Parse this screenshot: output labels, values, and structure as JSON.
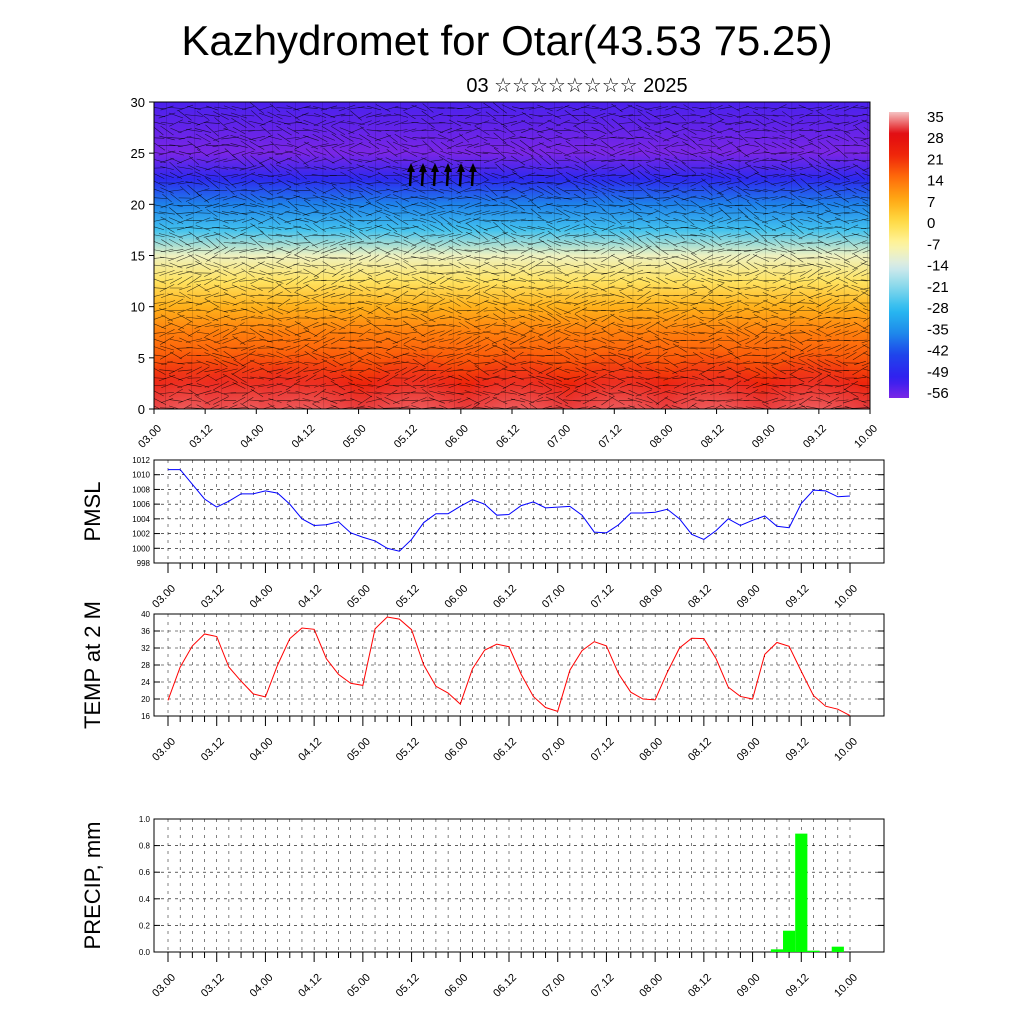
{
  "title": "Kazhydromet for Otar(43.53 75.25)",
  "subtitle": "03 ☆☆☆☆☆☆☆☆ 2025",
  "time_ticks": [
    "03.00",
    "03.12",
    "04.00",
    "04.12",
    "05.00",
    "05.12",
    "06.00",
    "06.12",
    "07.00",
    "07.12",
    "08.00",
    "08.12",
    "09.00",
    "09.12",
    "10.00"
  ],
  "colors": {
    "pmsl_line": "#0000ff",
    "temp_line": "#ff0000",
    "precip_bar": "#00ff00"
  },
  "chart_data": [
    {
      "type": "heatmap",
      "panel": "cross-section",
      "description_note": "",
      "ylim": [
        0,
        30
      ],
      "yticks": [
        0,
        5,
        10,
        15,
        20,
        25,
        30
      ],
      "colorbar_labels": [
        "35",
        "28",
        "21",
        "14",
        "7",
        "0",
        "-7",
        "-14",
        "-21",
        "-28",
        "-35",
        "-42",
        "-49",
        "-56"
      ],
      "levels": [
        0,
        2.5,
        5,
        7.5,
        10,
        12.5,
        15,
        17.5,
        20,
        22.5,
        25,
        27.5,
        30
      ],
      "level_temps": [
        30,
        22,
        16,
        12,
        6,
        -2,
        -10,
        -26,
        -36,
        -48,
        -56,
        -54,
        -52
      ]
    },
    {
      "type": "line",
      "ylabel": "PMSL",
      "ylim": [
        998,
        1012
      ],
      "yticks": [
        998,
        1000,
        1002,
        1004,
        1006,
        1008,
        1010,
        1012
      ],
      "x_start": "03.00",
      "x_step_hours": 3,
      "series": [
        {
          "values": [
            1010.7,
            1010.7,
            1008.7,
            1006.7,
            1005.6,
            1006.4,
            1007.4,
            1007.4,
            1007.8,
            1007.5,
            1006.0,
            1004.0,
            1003.1,
            1003.2,
            1003.6,
            1002.1,
            1001.5,
            1001.0,
            1000.0,
            999.6,
            1001.2,
            1003.5,
            1004.7,
            1004.7,
            1005.7,
            1006.6,
            1006.0,
            1004.5,
            1004.6,
            1005.8,
            1006.3,
            1005.5,
            1005.6,
            1005.7,
            1004.5,
            1002.2,
            1002.1,
            1003.2,
            1004.8,
            1004.8,
            1004.9,
            1005.3,
            1004.0,
            1001.9,
            1001.2,
            1002.4,
            1004.0,
            1003.1,
            1003.8,
            1004.4,
            1003.0,
            1002.8,
            1006.1,
            1007.9,
            1007.8,
            1007.0,
            1007.1
          ]
        }
      ]
    },
    {
      "type": "line",
      "ylabel": "TEMP at 2 M",
      "ylim": [
        16,
        40
      ],
      "yticks": [
        16,
        20,
        24,
        28,
        32,
        36,
        40
      ],
      "x_start": "03.00",
      "x_step_hours": 3,
      "series": [
        {
          "values": [
            19.7,
            27.5,
            32.5,
            35.3,
            34.7,
            27.5,
            24.2,
            21.2,
            20.5,
            28.0,
            34.2,
            36.7,
            36.4,
            29.5,
            25.8,
            23.7,
            23.2,
            36.5,
            39.3,
            38.8,
            36.3,
            28.0,
            23.0,
            21.4,
            18.8,
            27.1,
            31.5,
            32.9,
            32.3,
            25.8,
            20.6,
            18.0,
            17.1,
            26.8,
            31.4,
            33.5,
            32.5,
            25.9,
            21.6,
            20.0,
            19.8,
            26.3,
            32.0,
            34.3,
            34.2,
            29.5,
            22.8,
            20.6,
            20.0,
            30.5,
            33.3,
            32.4,
            26.5,
            20.8,
            18.3,
            17.6,
            16.1
          ]
        }
      ]
    },
    {
      "type": "bar",
      "ylabel": "PRECIP, mm",
      "ylim": [
        0,
        1.0
      ],
      "yticks": [
        "0.0",
        "0.2",
        "0.4",
        "0.6",
        "0.8",
        "1.0"
      ],
      "x_start": "03.00",
      "x_step_hours": 3,
      "bars": [
        {
          "step": 50,
          "value": 0.02
        },
        {
          "step": 51,
          "value": 0.16
        },
        {
          "step": 52,
          "value": 0.89
        },
        {
          "step": 53,
          "value": 0.01
        },
        {
          "step": 55,
          "value": 0.04
        }
      ]
    }
  ]
}
